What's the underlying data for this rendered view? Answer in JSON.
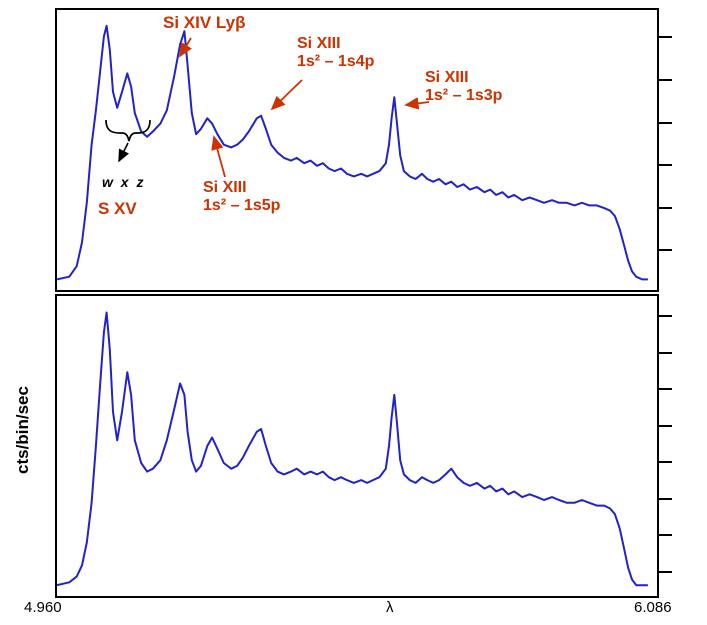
{
  "axes": {
    "ylabel": "cts/bin/sec",
    "xlabel": "λ",
    "x_min_label": "4.960",
    "x_max_label": "6.086"
  },
  "chart_data": {
    "type": "line",
    "title": "",
    "xlabel": "λ",
    "ylabel": "cts/bin/sec",
    "xlim": [
      4.96,
      6.086
    ],
    "ylim": [
      0,
      1
    ],
    "grid": false,
    "legend_position": "none",
    "colors": {
      "spectrum": "#2222cc",
      "annotation": "#cc3300",
      "axis": "#000000"
    },
    "x": [
      4.96,
      4.983,
      4.997,
      5.007,
      5.016,
      5.025,
      5.033,
      5.041,
      5.048,
      5.053,
      5.059,
      5.065,
      5.073,
      5.082,
      5.092,
      5.099,
      5.106,
      5.118,
      5.129,
      5.14,
      5.154,
      5.166,
      5.18,
      5.191,
      5.199,
      5.205,
      5.213,
      5.221,
      5.23,
      5.242,
      5.251,
      5.261,
      5.273,
      5.287,
      5.298,
      5.309,
      5.32,
      5.335,
      5.343,
      5.352,
      5.362,
      5.374,
      5.386,
      5.399,
      5.41,
      5.424,
      5.436,
      5.448,
      5.459,
      5.47,
      5.481,
      5.493,
      5.504,
      5.517,
      5.531,
      5.542,
      5.553,
      5.565,
      5.577,
      5.583,
      5.588,
      5.593,
      5.598,
      5.604,
      5.611,
      5.622,
      5.633,
      5.645,
      5.655,
      5.666,
      5.677,
      5.689,
      5.7,
      5.711,
      5.723,
      5.735,
      5.748,
      5.762,
      5.773,
      5.784,
      5.796,
      5.807,
      5.818,
      5.833,
      5.847,
      5.861,
      5.874,
      5.889,
      5.902,
      5.917,
      5.931,
      5.945,
      5.959,
      5.973,
      5.987,
      5.998,
      6.007,
      6.016,
      6.024,
      6.032,
      6.039,
      6.047,
      6.058,
      6.069
    ],
    "series": [
      {
        "name": "upper panel spectrum (relative counts)",
        "values": [
          0.01,
          0.02,
          0.06,
          0.15,
          0.3,
          0.52,
          0.65,
          0.8,
          0.93,
          0.97,
          0.88,
          0.72,
          0.66,
          0.72,
          0.79,
          0.74,
          0.64,
          0.57,
          0.55,
          0.57,
          0.6,
          0.65,
          0.78,
          0.9,
          0.95,
          0.82,
          0.64,
          0.56,
          0.58,
          0.62,
          0.6,
          0.56,
          0.52,
          0.51,
          0.52,
          0.54,
          0.57,
          0.62,
          0.63,
          0.58,
          0.52,
          0.49,
          0.47,
          0.46,
          0.47,
          0.45,
          0.46,
          0.44,
          0.45,
          0.43,
          0.42,
          0.43,
          0.41,
          0.4,
          0.41,
          0.4,
          0.41,
          0.42,
          0.45,
          0.52,
          0.62,
          0.7,
          0.6,
          0.48,
          0.42,
          0.4,
          0.39,
          0.41,
          0.39,
          0.38,
          0.39,
          0.37,
          0.38,
          0.36,
          0.37,
          0.35,
          0.36,
          0.34,
          0.35,
          0.33,
          0.34,
          0.32,
          0.33,
          0.31,
          0.32,
          0.31,
          0.3,
          0.31,
          0.3,
          0.3,
          0.29,
          0.3,
          0.29,
          0.29,
          0.28,
          0.27,
          0.25,
          0.2,
          0.14,
          0.08,
          0.04,
          0.02,
          0.01,
          0.01
        ]
      },
      {
        "name": "lower panel spectrum (relative counts)",
        "values": [
          0.01,
          0.02,
          0.04,
          0.08,
          0.16,
          0.3,
          0.5,
          0.72,
          0.9,
          0.97,
          0.84,
          0.62,
          0.52,
          0.62,
          0.76,
          0.68,
          0.52,
          0.44,
          0.41,
          0.42,
          0.45,
          0.52,
          0.63,
          0.72,
          0.68,
          0.55,
          0.45,
          0.41,
          0.43,
          0.5,
          0.53,
          0.49,
          0.44,
          0.42,
          0.43,
          0.46,
          0.5,
          0.55,
          0.56,
          0.5,
          0.44,
          0.41,
          0.4,
          0.41,
          0.42,
          0.4,
          0.41,
          0.4,
          0.41,
          0.39,
          0.38,
          0.39,
          0.38,
          0.37,
          0.38,
          0.37,
          0.38,
          0.39,
          0.42,
          0.5,
          0.6,
          0.68,
          0.58,
          0.45,
          0.4,
          0.38,
          0.37,
          0.39,
          0.38,
          0.37,
          0.38,
          0.4,
          0.42,
          0.39,
          0.37,
          0.36,
          0.37,
          0.35,
          0.36,
          0.34,
          0.35,
          0.33,
          0.34,
          0.32,
          0.33,
          0.32,
          0.31,
          0.32,
          0.31,
          0.3,
          0.3,
          0.31,
          0.3,
          0.29,
          0.29,
          0.28,
          0.26,
          0.21,
          0.14,
          0.07,
          0.03,
          0.01,
          0.01,
          0.01
        ]
      }
    ],
    "annotations": [
      {
        "id": "si-xiv-lyb",
        "lines": [
          "Si XIV Lyβ"
        ],
        "color": "#cc3300",
        "target_wavelength": 5.199
      },
      {
        "id": "si-xiii-1s4p",
        "lines": [
          "Si XIII",
          "1s² – 1s4p"
        ],
        "color": "#cc3300",
        "target_wavelength": 5.343
      },
      {
        "id": "si-xiii-1s3p",
        "lines": [
          "Si XIII",
          "1s² – 1s3p"
        ],
        "color": "#cc3300",
        "target_wavelength": 5.593
      },
      {
        "id": "si-xiii-1s5p",
        "lines": [
          "Si XIII",
          "1s² – 1s5p"
        ],
        "color": "#cc3300",
        "target_wavelength": 5.242
      },
      {
        "id": "w-x-z",
        "lines": [
          "w x z"
        ],
        "color": "#000000",
        "target_wavelength": 5.06
      },
      {
        "id": "s-xv",
        "lines": [
          "S XV"
        ],
        "color": "#cc3300",
        "target_wavelength": 5.06
      }
    ],
    "right_tick_fracs": {
      "top": [
        0.1,
        0.25,
        0.4,
        0.55,
        0.7,
        0.85
      ],
      "bottom": [
        0.07,
        0.19,
        0.31,
        0.43,
        0.55,
        0.67,
        0.79,
        0.91
      ]
    }
  }
}
